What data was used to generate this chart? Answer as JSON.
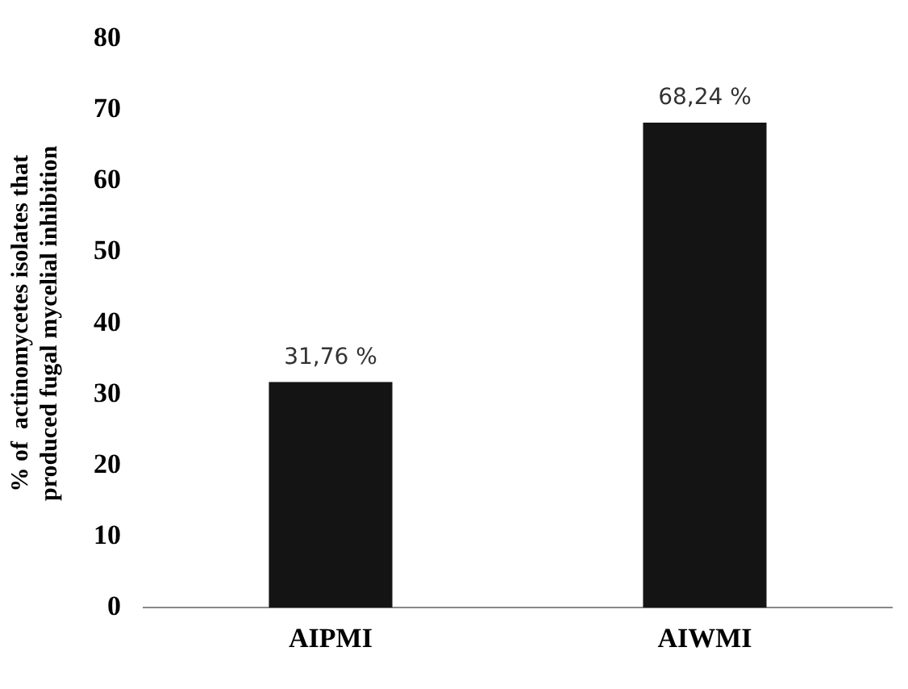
{
  "chart_data": {
    "type": "bar",
    "ylabel": "% of  actinomycetes isolates that\nproduced fugal mycelial inhibition",
    "categories": [
      "AIPMI",
      "AIWMI"
    ],
    "values": [
      31.76,
      68.24
    ],
    "value_labels": [
      "31,76 %",
      "68,24 %"
    ],
    "color": "#141414",
    "ylim": [
      0,
      80
    ],
    "yticks": [
      0,
      10,
      20,
      30,
      40,
      50,
      60,
      70,
      80
    ],
    "grid": false,
    "legend": false
  }
}
